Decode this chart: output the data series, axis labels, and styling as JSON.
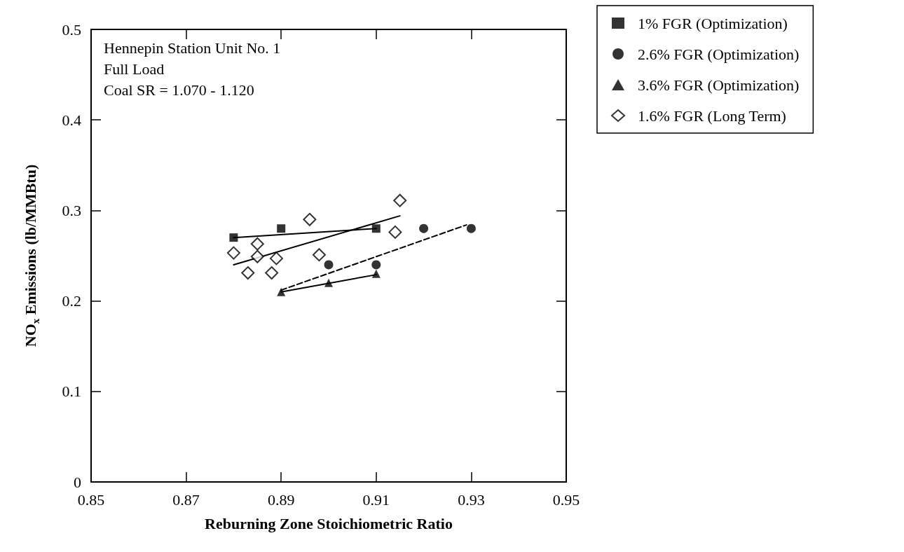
{
  "chart_data": {
    "type": "scatter",
    "xlabel": "Reburning Zone Stoichiometric Ratio",
    "ylabel": "NO$_{x}$ Emissions (lb/MMBtu)",
    "annotations": [
      "Hennepin Station Unit No. 1",
      "Full Load",
      "Coal SR = 1.070 - 1.120"
    ],
    "xlim": [
      0.85,
      0.95
    ],
    "xticks": [
      0.85,
      0.87,
      0.89,
      0.91,
      0.93,
      0.95
    ],
    "ylim": [
      0,
      0.5
    ],
    "yticks": [
      0,
      0.1,
      0.2,
      0.3,
      0.4,
      0.5
    ],
    "grid": false,
    "legend": "top right",
    "series": [
      {
        "name": "1% FGR (Optimization)",
        "marker": "square",
        "color": "#000000",
        "x": [
          0.88,
          0.89,
          0.91
        ],
        "values": [
          0.27,
          0.28,
          0.28
        ]
      },
      {
        "name": "2.6% FGR (Optimization)",
        "marker": "circle",
        "color": "#000000",
        "x": [
          0.9,
          0.91,
          0.92,
          0.93
        ],
        "values": [
          0.24,
          0.24,
          0.28,
          0.28
        ]
      },
      {
        "name": "3.6% FGR (Optimization)",
        "marker": "triangle",
        "color": "#000000",
        "x": [
          0.89,
          0.9,
          0.91
        ],
        "values": [
          0.21,
          0.22,
          0.23
        ]
      },
      {
        "name": "1.6% FGR (Long Term)",
        "marker": "diamond",
        "color": "#000000",
        "x": [
          0.88,
          0.885,
          0.885,
          0.883,
          0.889,
          0.888,
          0.896,
          0.898,
          0.914,
          0.915
        ],
        "values": [
          0.253,
          0.263,
          0.249,
          0.231,
          0.247,
          0.231,
          0.29,
          0.251,
          0.276,
          0.311
        ]
      },
      {
        "type": "line",
        "marker": "none",
        "line_style": "solid",
        "color": "#000000",
        "x": [
          0.88,
          0.91
        ],
        "values": [
          0.27,
          0.28
        ]
      },
      {
        "type": "line",
        "marker": "none",
        "line_style": "solid",
        "color": "#000000",
        "x": [
          0.88,
          0.915
        ],
        "values": [
          0.24,
          0.294
        ]
      },
      {
        "type": "line",
        "marker": "none",
        "line_style": "dashed",
        "color": "#000000",
        "x": [
          0.89,
          0.929
        ],
        "values": [
          0.212,
          0.284
        ]
      },
      {
        "type": "line",
        "marker": "none",
        "line_style": "solid",
        "color": "#000000",
        "x": [
          0.89,
          0.91
        ],
        "values": [
          0.21,
          0.229
        ]
      }
    ]
  }
}
